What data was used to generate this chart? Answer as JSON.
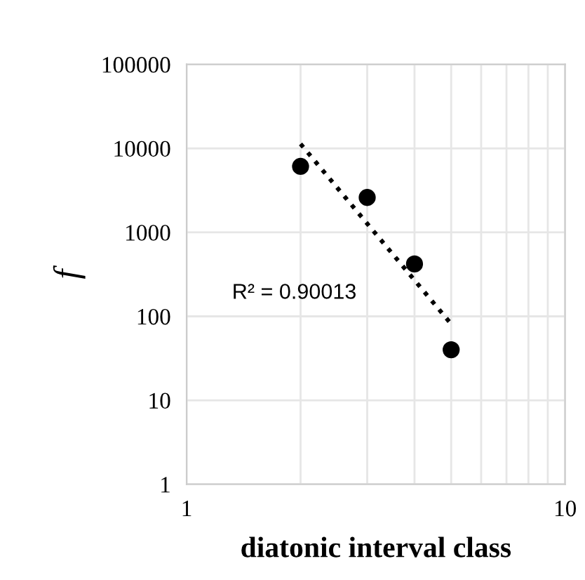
{
  "chart_data": {
    "type": "scatter",
    "xlabel": "diatonic interval class",
    "ylabel": "f",
    "log": "xy",
    "series": [
      {
        "color": "#000000",
        "marker": "circle",
        "x": [
          2,
          3,
          4,
          5
        ],
        "values": [
          6100,
          2600,
          420,
          40
        ]
      },
      {
        "type": "line",
        "color": "#000000",
        "line_style": "dotted",
        "marker": "none",
        "x": [
          2,
          5
        ],
        "values": [
          11300,
          81
        ]
      }
    ],
    "xlim": [
      1,
      10
    ],
    "xticks": [
      1,
      {
        "value": 2,
        "label": null
      },
      {
        "value": 3,
        "label": null
      },
      {
        "value": 4,
        "label": null
      },
      {
        "value": 5,
        "label": null
      },
      {
        "value": 6,
        "label": null
      },
      {
        "value": 7,
        "label": null
      },
      {
        "value": 8,
        "label": null
      },
      {
        "value": 9,
        "label": null
      },
      10
    ],
    "ylim": [
      1,
      100000
    ],
    "yticks": [
      1,
      10,
      100,
      1000,
      10000,
      100000
    ],
    "grid": true,
    "legend": false,
    "annotations": [
      "R² = 0.90013"
    ]
  }
}
